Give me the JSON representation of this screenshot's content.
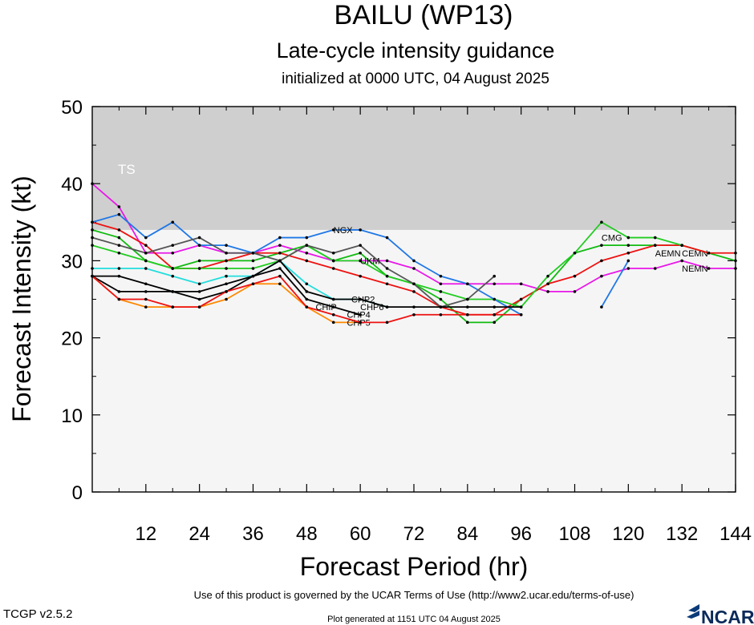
{
  "header": {
    "title": "BAILU (WP13)",
    "subtitle": "Late-cycle intensity guidance",
    "init": "initialized at 0000 UTC, 04 August 2025"
  },
  "footer": {
    "terms": "Use of this product is governed by the UCAR Terms of Use (http://www2.ucar.edu/terms-of-use)",
    "version": "TCGP v2.5.2",
    "generated": "Plot generated at 1151 UTC   04 August 2025",
    "logo": "NCAR"
  },
  "chart_data": {
    "type": "line",
    "title": "BAILU (WP13)",
    "xlabel": "Forecast Period (hr)",
    "ylabel": "Forecast Intensity (kt)",
    "xlim": [
      0,
      144
    ],
    "ylim": [
      0,
      50
    ],
    "xticks": [
      12,
      24,
      36,
      48,
      60,
      72,
      84,
      96,
      108,
      120,
      132,
      144
    ],
    "yticks": [
      0,
      10,
      20,
      30,
      40,
      50
    ],
    "grid": false,
    "legend": "none",
    "bands": [
      {
        "label": "TS",
        "from": 34,
        "to": 50,
        "color": "#cfcfcf"
      }
    ],
    "series": [
      {
        "name": "NEMN",
        "color": "#e817e8",
        "x": [
          0,
          6,
          12,
          18,
          24,
          30,
          36,
          42,
          48,
          54,
          60,
          66,
          72,
          78,
          84,
          90,
          96,
          102,
          108,
          114,
          120,
          126,
          132,
          138,
          144
        ],
        "y": [
          40,
          37,
          31,
          31,
          32,
          31,
          31,
          32,
          31,
          30,
          30,
          30,
          29,
          27,
          27,
          27,
          27,
          26,
          26,
          28,
          29,
          29,
          30,
          29,
          29
        ],
        "label_x": 132,
        "label_y": 29
      },
      {
        "name": "CEMN",
        "color": "#11bb11",
        "x": [
          0,
          6,
          12,
          18,
          24,
          30,
          36,
          42,
          48,
          54,
          60,
          66,
          72,
          78,
          84,
          90,
          96,
          102,
          108,
          114,
          120,
          126,
          132,
          138,
          144
        ],
        "y": [
          34,
          33,
          30,
          29,
          30,
          30,
          30,
          31,
          32,
          30,
          31,
          28,
          27,
          25,
          22,
          22,
          25,
          27,
          31,
          32,
          32,
          32,
          32,
          31,
          30
        ],
        "label_x": 132,
        "label_y": 31
      },
      {
        "name": "AEMN",
        "color": "#ee1111",
        "x": [
          0,
          6,
          12,
          18,
          24,
          30,
          36,
          42,
          48,
          54,
          60,
          66,
          72,
          78,
          84,
          90,
          96,
          102,
          108,
          114,
          120,
          126,
          132,
          138,
          144
        ],
        "y": [
          35,
          34,
          32,
          29,
          29,
          30,
          31,
          31,
          30,
          29,
          28,
          27,
          26,
          24,
          23,
          23,
          25,
          27,
          28,
          30,
          31,
          32,
          32,
          31,
          31
        ],
        "label_x": 126,
        "label_y": 31
      },
      {
        "name": "CMG",
        "color": "#22cc22",
        "x": [
          0,
          6,
          12,
          18,
          24,
          30,
          36,
          42,
          48,
          54,
          60,
          66,
          72,
          78,
          84,
          90,
          96,
          102,
          108,
          114,
          120,
          126,
          132
        ],
        "y": [
          32,
          31,
          30,
          29,
          29,
          29,
          29,
          30,
          32,
          30,
          30,
          28,
          27,
          26,
          25,
          25,
          24,
          28,
          31,
          35,
          33,
          33,
          32
        ],
        "label_x": 114,
        "label_y": 33
      },
      {
        "name": "NGX",
        "color": "#1f77e6",
        "x": [
          0,
          6,
          12,
          18,
          24,
          30,
          36,
          42,
          48,
          54,
          60,
          66,
          72,
          78,
          84,
          90,
          96,
          102,
          108,
          114,
          120
        ],
        "y": [
          35,
          36,
          33,
          35,
          32,
          32,
          31,
          33,
          33,
          34,
          34,
          33,
          30,
          28,
          27,
          25,
          23,
          null,
          null,
          24,
          30
        ],
        "label_x": 54,
        "label_y": 34
      },
      {
        "name": "UKM",
        "color": "#555555",
        "x": [
          0,
          6,
          12,
          18,
          24,
          30,
          36,
          42,
          48,
          54,
          60,
          66,
          72,
          78,
          84,
          90
        ],
        "y": [
          33,
          32,
          31,
          32,
          33,
          31,
          31,
          30,
          32,
          31,
          32,
          29,
          27,
          24,
          25,
          28
        ],
        "label_x": 60,
        "label_y": 30
      },
      {
        "name": "CHP2",
        "color": "#22dddd",
        "x": [
          0,
          6,
          12,
          18,
          24,
          30,
          36,
          42,
          48,
          54,
          60,
          66
        ],
        "y": [
          29,
          29,
          29,
          28,
          27,
          28,
          28,
          30,
          27,
          25,
          25,
          24
        ],
        "label_x": 58,
        "label_y": 25
      },
      {
        "name": "CHP6",
        "color": "#000000",
        "x": [
          0,
          6,
          12,
          18,
          24,
          30,
          36,
          42,
          48,
          54,
          60,
          66,
          72,
          78,
          84,
          90,
          96
        ],
        "y": [
          28,
          28,
          27,
          26,
          26,
          27,
          28,
          30,
          26,
          25,
          25,
          24,
          24,
          24,
          24,
          24,
          24
        ],
        "label_x": 60,
        "label_y": 24
      },
      {
        "name": "CHP4",
        "color": "#000000",
        "x": [
          0,
          6,
          12,
          18,
          24,
          30,
          36,
          42,
          48,
          54,
          60
        ],
        "y": [
          28,
          26,
          26,
          26,
          25,
          26,
          28,
          29,
          25,
          24,
          23
        ],
        "label_x": 57,
        "label_y": 23
      },
      {
        "name": "CHP5",
        "color": "#ff8800",
        "x": [
          0,
          6,
          12,
          18,
          24,
          30,
          36,
          42,
          48,
          54,
          60
        ],
        "y": [
          28,
          25,
          24,
          24,
          24,
          25,
          27,
          27,
          24,
          22,
          22
        ],
        "label_x": 57,
        "label_y": 22
      },
      {
        "name": "CHIP",
        "color": "#ee1111",
        "x": [
          0,
          6,
          12,
          18,
          24,
          30,
          36,
          42,
          48,
          54,
          60,
          66,
          72,
          78,
          84,
          90,
          96
        ],
        "y": [
          28,
          25,
          25,
          24,
          24,
          26,
          27,
          28,
          24,
          23,
          22,
          22,
          23,
          23,
          23,
          23,
          23
        ],
        "label_x": 50,
        "label_y": 24
      }
    ]
  }
}
